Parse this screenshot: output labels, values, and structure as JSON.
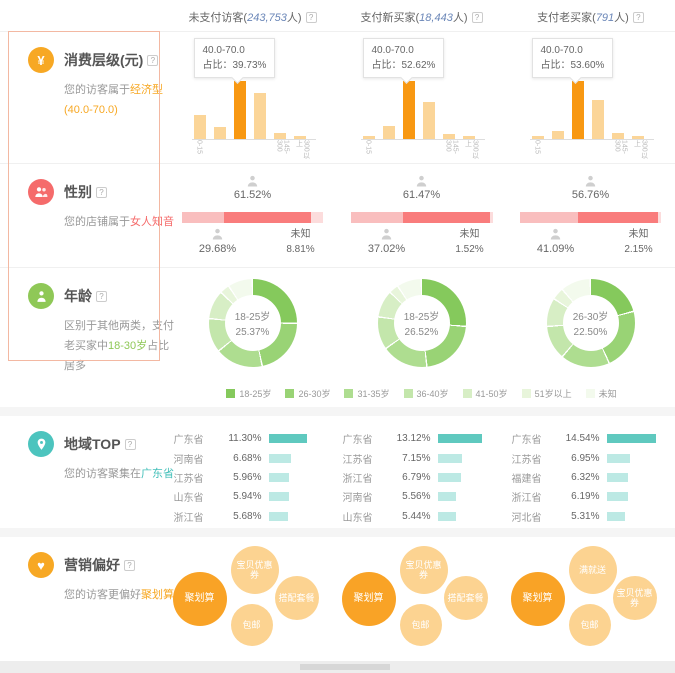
{
  "help_glyph": "?",
  "column_headers": [
    {
      "prefix": "未支付访客(",
      "count": "243,753",
      "suffix": "人)"
    },
    {
      "prefix": "支付新买家(",
      "count": "18,443",
      "suffix": "人)"
    },
    {
      "prefix": "支付老买家(",
      "count": "791",
      "suffix": "人)"
    }
  ],
  "consumption": {
    "title": "消费层级(元)",
    "desc_prefix": "您的访客属于",
    "desc_highlight": "经济型(40.0-70.0)",
    "desc_suffix": "",
    "accent": "#f7a824",
    "tooltip_title": "40.0-70.0",
    "tooltip_label": "占比：",
    "bar_color": "#fbd598",
    "bar_highlight_color": "#f89812",
    "highlight_index": 2,
    "x_left_label": "0-15",
    "x_right_labels": [
      "145-300",
      "300以上"
    ],
    "charts": [
      {
        "tooltip_value": "39.73%",
        "bars": [
          42,
          20,
          100,
          79,
          11,
          4
        ]
      },
      {
        "tooltip_value": "52.62%",
        "bars": [
          5,
          23,
          100,
          63,
          9,
          4
        ]
      },
      {
        "tooltip_value": "53.60%",
        "bars": [
          4,
          13,
          100,
          68,
          11,
          5
        ]
      }
    ]
  },
  "gender": {
    "title": "性别",
    "desc_prefix": "您的店铺属于",
    "desc_highlight": "女人知音",
    "desc_suffix": "",
    "accent": "#f56b6b",
    "unknown_label": "未知",
    "colors": {
      "male": "#f9bebe",
      "female": "#f97c7c",
      "unknown": "#fcdcdc"
    },
    "charts": [
      {
        "female_text": "61.52%",
        "male_text": "29.68%",
        "unknown_text": "8.81%",
        "female": 61.52,
        "male": 29.68,
        "unknown": 8.81
      },
      {
        "female_text": "61.47%",
        "male_text": "37.02%",
        "unknown_text": "1.52%",
        "female": 61.47,
        "male": 37.02,
        "unknown": 1.52
      },
      {
        "female_text": "56.76%",
        "male_text": "41.09%",
        "unknown_text": "2.15%",
        "female": 56.76,
        "male": 41.09,
        "unknown": 2.15
      }
    ]
  },
  "age": {
    "title": "年龄",
    "desc_prefix": "区别于其他两类，支付老买家中",
    "desc_highlight": "18-30岁",
    "desc_suffix": "占比居多",
    "accent": "#8fc857",
    "legend": [
      "18-25岁",
      "26-30岁",
      "31-35岁",
      "36-40岁",
      "41-50岁",
      "51岁以上",
      "未知"
    ],
    "palette": [
      "#85c95c",
      "#99d375",
      "#aedd90",
      "#c3e6ab",
      "#d7eec5",
      "#e8f5db",
      "#f3faed"
    ],
    "charts": [
      {
        "center_label": "18-25岁",
        "center_value": "25.37%",
        "segments": [
          25.4,
          21.5,
          17.5,
          12.5,
          10.5,
          3.6,
          9.0
        ]
      },
      {
        "center_label": "18-25岁",
        "center_value": "26.52%",
        "segments": [
          26.5,
          22.0,
          17.0,
          12.0,
          10.0,
          3.5,
          9.0
        ]
      },
      {
        "center_label": "26-30岁",
        "center_value": "22.50%",
        "segments": [
          21.0,
          22.5,
          18.0,
          12.5,
          10.5,
          4.5,
          11.0
        ]
      }
    ]
  },
  "region": {
    "title": "地域TOP",
    "desc_prefix": "您的访客聚集在",
    "desc_highlight": "广东省",
    "desc_suffix": "",
    "accent": "#45c0ba",
    "bar_color_top": "#5fc9bf",
    "bar_color": "#bce9e4",
    "charts": [
      {
        "rows": [
          {
            "name": "广东省",
            "pct": "11.30%",
            "value": 11.3
          },
          {
            "name": "河南省",
            "pct": "6.68%",
            "value": 6.68
          },
          {
            "name": "江苏省",
            "pct": "5.96%",
            "value": 5.96
          },
          {
            "name": "山东省",
            "pct": "5.94%",
            "value": 5.94
          },
          {
            "name": "浙江省",
            "pct": "5.68%",
            "value": 5.68
          }
        ]
      },
      {
        "rows": [
          {
            "name": "广东省",
            "pct": "13.12%",
            "value": 13.12
          },
          {
            "name": "江苏省",
            "pct": "7.15%",
            "value": 7.15
          },
          {
            "name": "浙江省",
            "pct": "6.79%",
            "value": 6.79
          },
          {
            "name": "河南省",
            "pct": "5.56%",
            "value": 5.56
          },
          {
            "name": "山东省",
            "pct": "5.44%",
            "value": 5.44
          }
        ]
      },
      {
        "rows": [
          {
            "name": "广东省",
            "pct": "14.54%",
            "value": 14.54
          },
          {
            "name": "江苏省",
            "pct": "6.95%",
            "value": 6.95
          },
          {
            "name": "福建省",
            "pct": "6.32%",
            "value": 6.32
          },
          {
            "name": "浙江省",
            "pct": "6.19%",
            "value": 6.19
          },
          {
            "name": "河北省",
            "pct": "5.31%",
            "value": 5.31
          }
        ]
      }
    ]
  },
  "marketing": {
    "title": "营销偏好",
    "desc_prefix": "您的访客更偏好",
    "desc_highlight": "聚划算",
    "desc_suffix": "",
    "accent": "#f7a824",
    "main_color": "#f9a326",
    "bubble_color": "#fcd391",
    "charts": [
      {
        "main": "聚划算",
        "top": "宝贝优惠券",
        "right": "搭配套餐",
        "bottom": "包邮"
      },
      {
        "main": "聚划算",
        "top": "宝贝优惠券",
        "right": "搭配套餐",
        "bottom": "包邮"
      },
      {
        "main": "聚划算",
        "top": "满就送",
        "right": "宝贝优惠券",
        "bottom": "包邮"
      }
    ]
  }
}
